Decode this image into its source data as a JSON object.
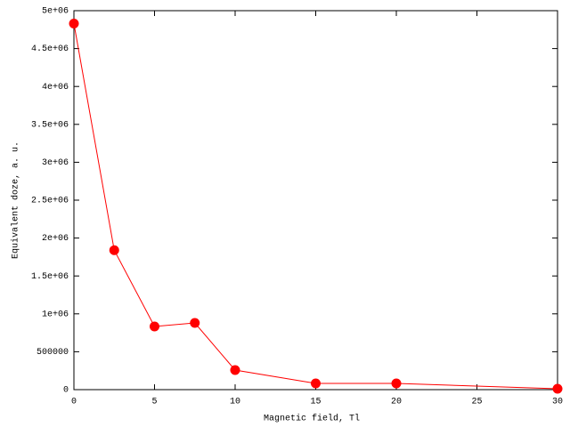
{
  "chart_data": {
    "type": "line",
    "xlabel": "Magnetic field, Tl",
    "ylabel": "Equivalent doze, a. u.",
    "x": [
      0,
      2.5,
      5,
      7.5,
      10,
      15,
      20,
      30
    ],
    "values": [
      4830000,
      1840000,
      833000,
      880000,
      258000,
      82000,
      82000,
      12000
    ],
    "color": "#ff0000",
    "xlim": [
      0,
      30
    ],
    "xticks": [
      0,
      5,
      10,
      15,
      20,
      25,
      30
    ],
    "ylim": [
      0,
      5000000
    ],
    "yticks": [
      0,
      500000,
      {
        "value": 1000000,
        "label": "1e+06"
      },
      {
        "value": 1500000,
        "label": "1.5e+06"
      },
      {
        "value": 2000000,
        "label": "2e+06"
      },
      {
        "value": 2500000,
        "label": "2.5e+06"
      },
      {
        "value": 3000000,
        "label": "3e+06"
      },
      {
        "value": 3500000,
        "label": "3.5e+06"
      },
      {
        "value": 4000000,
        "label": "4e+06"
      },
      {
        "value": 4500000,
        "label": "4.5e+06"
      },
      {
        "value": 5000000,
        "label": "5e+06"
      }
    ]
  }
}
